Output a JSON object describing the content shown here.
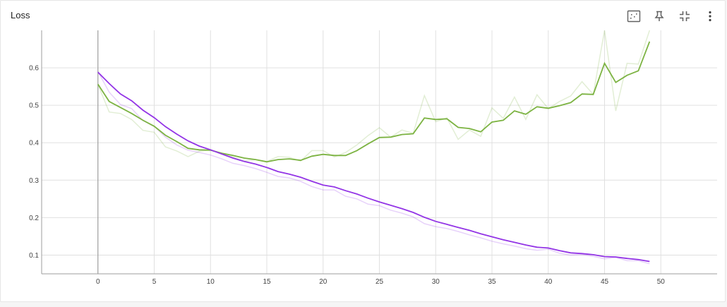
{
  "card": {
    "title": "Loss"
  },
  "toolbar": {
    "items": [
      {
        "name": "toggle-log-scale",
        "icon": "dotted-square-icon"
      },
      {
        "name": "pin",
        "icon": "pin-icon"
      },
      {
        "name": "collapse",
        "icon": "fullscreen-exit-icon"
      },
      {
        "name": "more",
        "icon": "more-vert-icon"
      }
    ]
  },
  "chart_data": {
    "type": "line",
    "title": "",
    "xlabel": "",
    "ylabel": "",
    "xlim": [
      -5,
      55
    ],
    "ylim": [
      0.05,
      0.7
    ],
    "xticks": [
      0,
      5,
      10,
      15,
      20,
      25,
      30,
      35,
      40,
      45,
      50
    ],
    "yticks": [
      0.1,
      0.2,
      0.3,
      0.4,
      0.5,
      0.6
    ],
    "grid": true,
    "legend": "none",
    "series": [
      {
        "color": "#7cb342",
        "smoothed": [
          0.556,
          0.51,
          0.494,
          0.478,
          0.46,
          0.444,
          0.42,
          0.403,
          0.385,
          0.381,
          0.38,
          0.372,
          0.366,
          0.359,
          0.355,
          0.349,
          0.355,
          0.357,
          0.353,
          0.364,
          0.369,
          0.366,
          0.366,
          0.379,
          0.397,
          0.414,
          0.415,
          0.422,
          0.424,
          0.466,
          0.462,
          0.464,
          0.441,
          0.438,
          0.429,
          0.455,
          0.46,
          0.485,
          0.476,
          0.496,
          0.492,
          0.499,
          0.507,
          0.53,
          0.529,
          0.612,
          0.561,
          0.58,
          0.592,
          0.67
        ],
        "raw": [
          0.555,
          0.482,
          0.478,
          0.462,
          0.433,
          0.428,
          0.389,
          0.378,
          0.363,
          0.377,
          0.381,
          0.371,
          0.362,
          0.351,
          0.355,
          0.35,
          0.363,
          0.361,
          0.351,
          0.379,
          0.379,
          0.362,
          0.374,
          0.394,
          0.419,
          0.44,
          0.415,
          0.434,
          0.425,
          0.526,
          0.456,
          0.466,
          0.409,
          0.434,
          0.417,
          0.493,
          0.465,
          0.522,
          0.462,
          0.528,
          0.491,
          0.51,
          0.525,
          0.563,
          0.529,
          0.7,
          0.485,
          0.612,
          0.61,
          0.7
        ]
      },
      {
        "color": "#9334e6",
        "smoothed": [
          0.588,
          0.558,
          0.53,
          0.512,
          0.487,
          0.467,
          0.443,
          0.423,
          0.405,
          0.391,
          0.381,
          0.37,
          0.359,
          0.35,
          0.343,
          0.334,
          0.323,
          0.316,
          0.308,
          0.297,
          0.287,
          0.282,
          0.272,
          0.263,
          0.252,
          0.242,
          0.233,
          0.224,
          0.214,
          0.201,
          0.19,
          0.182,
          0.174,
          0.166,
          0.157,
          0.149,
          0.141,
          0.134,
          0.127,
          0.121,
          0.119,
          0.112,
          0.106,
          0.104,
          0.101,
          0.096,
          0.095,
          0.091,
          0.088,
          0.083
        ],
        "raw": [
          0.59,
          0.535,
          0.502,
          0.491,
          0.459,
          0.444,
          0.415,
          0.394,
          0.38,
          0.374,
          0.367,
          0.357,
          0.345,
          0.339,
          0.331,
          0.321,
          0.31,
          0.306,
          0.297,
          0.283,
          0.274,
          0.274,
          0.257,
          0.25,
          0.236,
          0.232,
          0.22,
          0.212,
          0.202,
          0.184,
          0.176,
          0.171,
          0.163,
          0.154,
          0.146,
          0.137,
          0.13,
          0.124,
          0.117,
          0.113,
          0.116,
          0.105,
          0.1,
          0.101,
          0.097,
          0.09,
          0.094,
          0.085,
          0.085,
          0.077
        ]
      }
    ]
  }
}
